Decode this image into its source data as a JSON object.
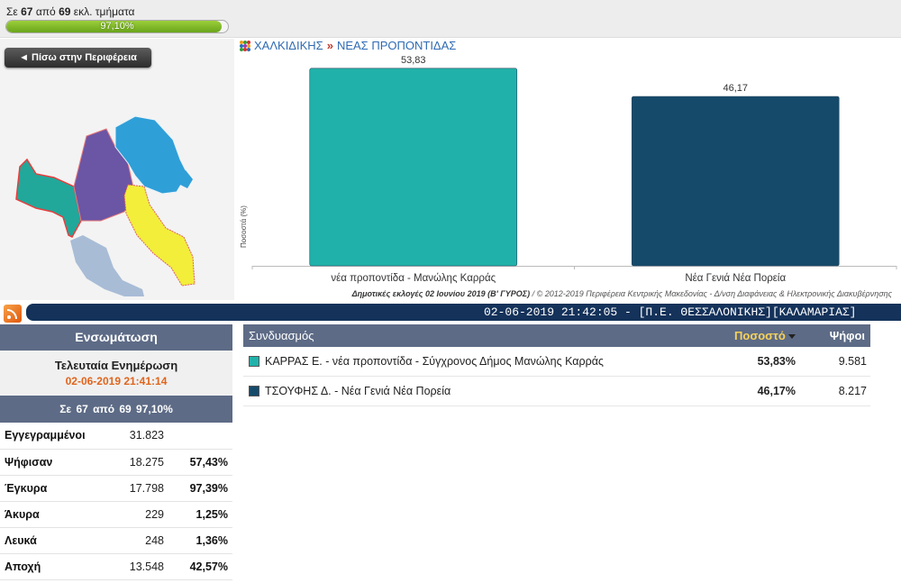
{
  "top": {
    "counted_prefix": "Σε",
    "counted_done": "67",
    "counted_mid": "από",
    "counted_total": "69",
    "counted_suffix": "εκλ. τμήματα",
    "progress_label": "97,10%",
    "progress_fraction": 0.971
  },
  "nav": {
    "back_label": "◄ Πίσω στην Περιφέρεια"
  },
  "breadcrumb": {
    "region": "ΧΑΛΚΙΔΙΚΗΣ",
    "separator": "»",
    "municipality": "ΝΕΑΣ ΠΡΟΠΟΝΤΙΔΑΣ"
  },
  "chart_data": {
    "type": "bar",
    "categories": [
      "νέα προποντίδα - Μανώλης Καρράς",
      "Νέα Γενιά Νέα Πορεία"
    ],
    "values": [
      53.83,
      46.17
    ],
    "value_labels": [
      "53,83",
      "46,17"
    ],
    "colors": [
      "#20b2aa",
      "#154a6a"
    ],
    "ylabel": "Ποσοστά (%)",
    "ylim": [
      0,
      56
    ]
  },
  "credit": {
    "bold": "Δημοτικές εκλογές 02 Ιουνίου 2019 (Β' ΓΥΡΟΣ)",
    "rest": " / © 2012-2019 Περιφέρεια Κεντρικής Μακεδονίας - Δ/νση Διαφάνειας & Ηλεκτρονικής Διακυβέρνησης"
  },
  "ticker": "02-06-2019 21:42:05 - [Π.Ε. ΘΕΣΣΑΛΟΝΙΚΗΣ][ΚΑΛΑΜΑΡΙΑΣ]",
  "sidebar": {
    "title": "Ενσωμάτωση",
    "update_label": "Τελευταία Ενημέρωση",
    "update_time": "02-06-2019 21:41:14",
    "count_line": "Σε 67 από 69 97,10%",
    "rows": [
      {
        "label": "Εγγεγραμμένοι",
        "value": "31.823",
        "pct": ""
      },
      {
        "label": "Ψήφισαν",
        "value": "18.275",
        "pct": "57,43%"
      },
      {
        "label": "Έγκυρα",
        "value": "17.798",
        "pct": "97,39%"
      },
      {
        "label": "Άκυρα",
        "value": "229",
        "pct": "1,25%"
      },
      {
        "label": "Λευκά",
        "value": "248",
        "pct": "1,36%"
      },
      {
        "label": "Αποχή",
        "value": "13.548",
        "pct": "42,57%"
      }
    ]
  },
  "results": {
    "col_party": "Συνδυασμός",
    "col_pct": "Ποσοστό",
    "col_votes": "Ψήφοι",
    "rows": [
      {
        "name": "ΚΑΡΡΑΣ Ε. - νέα προποντίδα - Σύγχρονος Δήμος Μανώλης Καρράς",
        "pct": "53,83%",
        "votes": "9.581",
        "color": "#20b2aa"
      },
      {
        "name": "ΤΣΟΥΦΗΣ Δ. - Νέα Γενιά Νέα Πορεία",
        "pct": "46,17%",
        "votes": "8.217",
        "color": "#154a6a"
      }
    ]
  }
}
